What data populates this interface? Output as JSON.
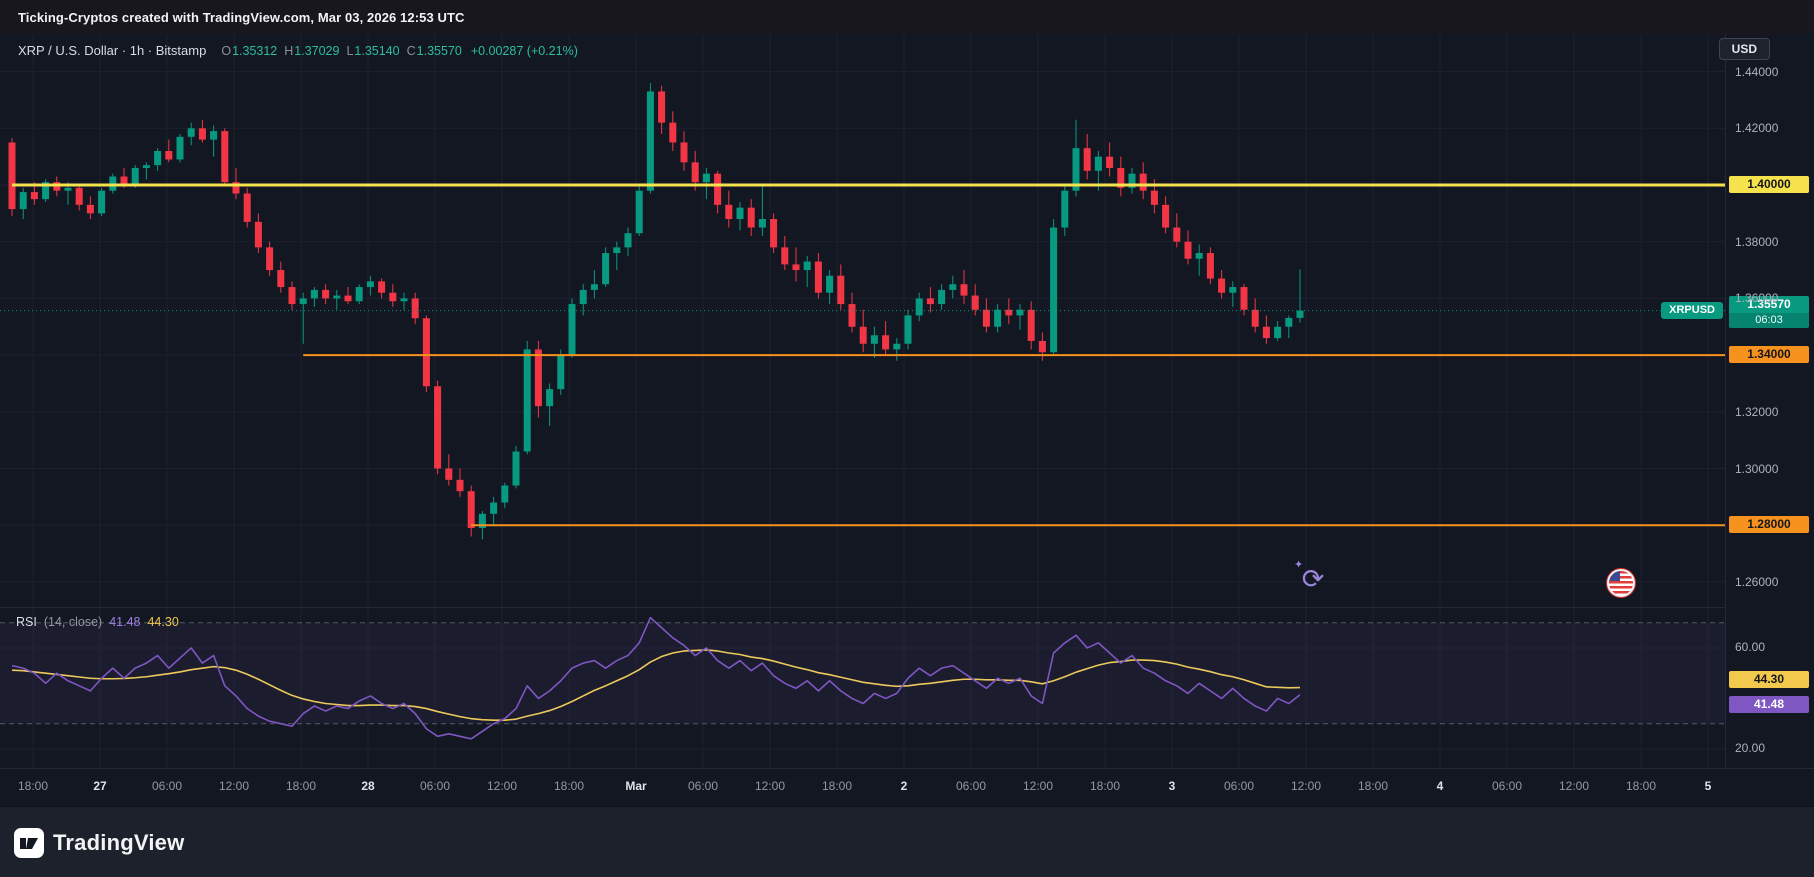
{
  "topbar": {
    "title": "Ticking-Cryptos created with TradingView.com, Mar 03, 2026 12:53 UTC"
  },
  "toolbar": {
    "currency_label": "USD"
  },
  "legend": {
    "symbol_title": "XRP / U.S. Dollar · 1h · Bitstamp",
    "o_label": "O",
    "o": "1.35312",
    "h_label": "H",
    "h": "1.37029",
    "l_label": "L",
    "l": "1.35140",
    "c_label": "C",
    "c": "1.35570",
    "change": "+0.00287 (+0.21%)"
  },
  "rsi_legend": {
    "title": "RSI",
    "params": "(14, close)",
    "value": "41.48",
    "ma_value": "44.30"
  },
  "price_label": {
    "symbol_badge": "XRPUSD",
    "price": "1.35570",
    "countdown": "06:03"
  },
  "footer": {
    "brand": "TradingView"
  },
  "colors": {
    "background": "#131722",
    "up": "#089981",
    "down": "#f23645",
    "yellow_line": "#f6e24c",
    "orange_line": "#f7921e",
    "rsi_line": "#7e57c2",
    "rsi_ma": "#edc95c",
    "grid": "#1d2130",
    "axis_text": "#aeb1bb"
  },
  "time_axis": {
    "labels": [
      {
        "t": "18:00",
        "day": false
      },
      {
        "t": "27",
        "day": true
      },
      {
        "t": "06:00",
        "day": false
      },
      {
        "t": "12:00",
        "day": false
      },
      {
        "t": "18:00",
        "day": false
      },
      {
        "t": "28",
        "day": true
      },
      {
        "t": "06:00",
        "day": false
      },
      {
        "t": "12:00",
        "day": false
      },
      {
        "t": "18:00",
        "day": false
      },
      {
        "t": "Mar",
        "day": true
      },
      {
        "t": "06:00",
        "day": false
      },
      {
        "t": "12:00",
        "day": false
      },
      {
        "t": "18:00",
        "day": false
      },
      {
        "t": "2",
        "day": true
      },
      {
        "t": "06:00",
        "day": false
      },
      {
        "t": "12:00",
        "day": false
      },
      {
        "t": "18:00",
        "day": false
      },
      {
        "t": "3",
        "day": true
      },
      {
        "t": "06:00",
        "day": false
      },
      {
        "t": "12:00",
        "day": false
      },
      {
        "t": "18:00",
        "day": false
      },
      {
        "t": "4",
        "day": true
      },
      {
        "t": "06:00",
        "day": false
      },
      {
        "t": "12:00",
        "day": false
      },
      {
        "t": "18:00",
        "day": false
      },
      {
        "t": "5",
        "day": true
      }
    ]
  },
  "price_scale": {
    "plain_ticks": [
      {
        "label": "1.44000",
        "value": 1.44
      },
      {
        "label": "1.42000",
        "value": 1.42
      },
      {
        "label": "1.38000",
        "value": 1.38
      },
      {
        "label": "1.36000",
        "value": 1.36
      },
      {
        "label": "1.32000",
        "value": 1.32
      },
      {
        "label": "1.30000",
        "value": 1.3
      },
      {
        "label": "1.26000",
        "value": 1.26
      }
    ]
  },
  "chart_data": {
    "type": "candlestick",
    "symbol": "XRPUSD",
    "exchange": "Bitstamp",
    "interval": "1h",
    "title": "XRP / U.S. Dollar",
    "time_range": "Feb 26 16:00 to Mar 03 12:00, hourly bars",
    "ylim": [
      1.25,
      1.455
    ],
    "y_ticks": [
      1.26,
      1.28,
      1.3,
      1.32,
      1.34,
      1.36,
      1.38,
      1.4,
      1.42,
      1.44
    ],
    "ohlc": [
      [
        1.415,
        1.4165,
        1.389,
        1.3915
      ],
      [
        1.3915,
        1.399,
        1.388,
        1.3975
      ],
      [
        1.3975,
        1.401,
        1.393,
        1.395
      ],
      [
        1.395,
        1.402,
        1.394,
        1.401
      ],
      [
        1.401,
        1.403,
        1.396,
        1.398
      ],
      [
        1.398,
        1.401,
        1.393,
        1.399
      ],
      [
        1.399,
        1.4,
        1.391,
        1.393
      ],
      [
        1.393,
        1.396,
        1.388,
        1.39
      ],
      [
        1.39,
        1.399,
        1.389,
        1.398
      ],
      [
        1.398,
        1.404,
        1.397,
        1.403
      ],
      [
        1.403,
        1.406,
        1.399,
        1.4
      ],
      [
        1.4,
        1.407,
        1.399,
        1.406
      ],
      [
        1.406,
        1.408,
        1.402,
        1.407
      ],
      [
        1.407,
        1.413,
        1.405,
        1.412
      ],
      [
        1.412,
        1.416,
        1.408,
        1.409
      ],
      [
        1.409,
        1.418,
        1.408,
        1.417
      ],
      [
        1.417,
        1.422,
        1.414,
        1.42
      ],
      [
        1.42,
        1.423,
        1.415,
        1.416
      ],
      [
        1.416,
        1.421,
        1.41,
        1.419
      ],
      [
        1.419,
        1.42,
        1.4,
        1.401
      ],
      [
        1.401,
        1.406,
        1.395,
        1.397
      ],
      [
        1.397,
        1.399,
        1.385,
        1.387
      ],
      [
        1.387,
        1.39,
        1.376,
        1.378
      ],
      [
        1.378,
        1.38,
        1.368,
        1.37
      ],
      [
        1.37,
        1.373,
        1.362,
        1.364
      ],
      [
        1.364,
        1.366,
        1.356,
        1.358
      ],
      [
        1.358,
        1.362,
        1.344,
        1.36
      ],
      [
        1.36,
        1.364,
        1.357,
        1.363
      ],
      [
        1.363,
        1.365,
        1.358,
        1.36
      ],
      [
        1.36,
        1.363,
        1.356,
        1.361
      ],
      [
        1.361,
        1.364,
        1.358,
        1.359
      ],
      [
        1.359,
        1.365,
        1.358,
        1.364
      ],
      [
        1.364,
        1.368,
        1.361,
        1.366
      ],
      [
        1.366,
        1.367,
        1.36,
        1.362
      ],
      [
        1.362,
        1.365,
        1.357,
        1.359
      ],
      [
        1.359,
        1.362,
        1.356,
        1.36
      ],
      [
        1.36,
        1.362,
        1.351,
        1.353
      ],
      [
        1.353,
        1.354,
        1.327,
        1.329
      ],
      [
        1.329,
        1.331,
        1.298,
        1.3
      ],
      [
        1.3,
        1.305,
        1.294,
        1.296
      ],
      [
        1.296,
        1.3,
        1.29,
        1.292
      ],
      [
        1.292,
        1.294,
        1.276,
        1.279
      ],
      [
        1.279,
        1.285,
        1.275,
        1.284
      ],
      [
        1.284,
        1.29,
        1.28,
        1.288
      ],
      [
        1.288,
        1.295,
        1.286,
        1.294
      ],
      [
        1.294,
        1.308,
        1.293,
        1.306
      ],
      [
        1.306,
        1.345,
        1.305,
        1.342
      ],
      [
        1.342,
        1.345,
        1.318,
        1.322
      ],
      [
        1.322,
        1.33,
        1.315,
        1.328
      ],
      [
        1.328,
        1.342,
        1.326,
        1.34
      ],
      [
        1.34,
        1.36,
        1.339,
        1.358
      ],
      [
        1.358,
        1.365,
        1.354,
        1.363
      ],
      [
        1.363,
        1.37,
        1.36,
        1.365
      ],
      [
        1.365,
        1.378,
        1.364,
        1.376
      ],
      [
        1.376,
        1.38,
        1.37,
        1.378
      ],
      [
        1.378,
        1.385,
        1.375,
        1.383
      ],
      [
        1.383,
        1.4,
        1.382,
        1.398
      ],
      [
        1.398,
        1.436,
        1.397,
        1.433
      ],
      [
        1.433,
        1.435,
        1.418,
        1.422
      ],
      [
        1.422,
        1.426,
        1.412,
        1.415
      ],
      [
        1.415,
        1.419,
        1.405,
        1.408
      ],
      [
        1.408,
        1.412,
        1.398,
        1.401
      ],
      [
        1.401,
        1.406,
        1.395,
        1.404
      ],
      [
        1.404,
        1.405,
        1.39,
        1.393
      ],
      [
        1.393,
        1.398,
        1.385,
        1.388
      ],
      [
        1.388,
        1.394,
        1.384,
        1.392
      ],
      [
        1.392,
        1.395,
        1.382,
        1.385
      ],
      [
        1.385,
        1.4,
        1.382,
        1.388
      ],
      [
        1.388,
        1.39,
        1.376,
        1.378
      ],
      [
        1.378,
        1.382,
        1.37,
        1.372
      ],
      [
        1.372,
        1.378,
        1.366,
        1.37
      ],
      [
        1.37,
        1.375,
        1.364,
        1.373
      ],
      [
        1.373,
        1.376,
        1.36,
        1.362
      ],
      [
        1.362,
        1.37,
        1.358,
        1.368
      ],
      [
        1.368,
        1.372,
        1.356,
        1.358
      ],
      [
        1.358,
        1.362,
        1.348,
        1.35
      ],
      [
        1.35,
        1.356,
        1.341,
        1.344
      ],
      [
        1.344,
        1.35,
        1.339,
        1.347
      ],
      [
        1.347,
        1.352,
        1.34,
        1.342
      ],
      [
        1.342,
        1.346,
        1.338,
        1.344
      ],
      [
        1.344,
        1.356,
        1.342,
        1.354
      ],
      [
        1.354,
        1.362,
        1.352,
        1.36
      ],
      [
        1.36,
        1.364,
        1.355,
        1.358
      ],
      [
        1.358,
        1.365,
        1.356,
        1.363
      ],
      [
        1.363,
        1.368,
        1.36,
        1.365
      ],
      [
        1.365,
        1.37,
        1.358,
        1.361
      ],
      [
        1.361,
        1.365,
        1.354,
        1.356
      ],
      [
        1.356,
        1.36,
        1.348,
        1.35
      ],
      [
        1.35,
        1.358,
        1.348,
        1.356
      ],
      [
        1.356,
        1.36,
        1.351,
        1.354
      ],
      [
        1.354,
        1.358,
        1.349,
        1.356
      ],
      [
        1.356,
        1.359,
        1.342,
        1.345
      ],
      [
        1.345,
        1.348,
        1.338,
        1.341
      ],
      [
        1.341,
        1.388,
        1.34,
        1.385
      ],
      [
        1.385,
        1.4,
        1.382,
        1.398
      ],
      [
        1.398,
        1.423,
        1.396,
        1.413
      ],
      [
        1.413,
        1.418,
        1.402,
        1.405
      ],
      [
        1.405,
        1.412,
        1.398,
        1.41
      ],
      [
        1.41,
        1.415,
        1.403,
        1.406
      ],
      [
        1.406,
        1.41,
        1.396,
        1.399
      ],
      [
        1.399,
        1.406,
        1.397,
        1.404
      ],
      [
        1.404,
        1.408,
        1.395,
        1.398
      ],
      [
        1.398,
        1.402,
        1.39,
        1.393
      ],
      [
        1.393,
        1.396,
        1.383,
        1.385
      ],
      [
        1.385,
        1.39,
        1.378,
        1.38
      ],
      [
        1.38,
        1.384,
        1.372,
        1.374
      ],
      [
        1.374,
        1.379,
        1.368,
        1.376
      ],
      [
        1.376,
        1.378,
        1.365,
        1.367
      ],
      [
        1.367,
        1.37,
        1.36,
        1.362
      ],
      [
        1.362,
        1.366,
        1.357,
        1.364
      ],
      [
        1.364,
        1.365,
        1.354,
        1.356
      ],
      [
        1.356,
        1.36,
        1.348,
        1.35
      ],
      [
        1.35,
        1.354,
        1.344,
        1.346
      ],
      [
        1.346,
        1.352,
        1.345,
        1.35
      ],
      [
        1.35,
        1.354,
        1.346,
        1.3531
      ],
      [
        1.35312,
        1.37029,
        1.3514,
        1.3557
      ]
    ],
    "levels": [
      {
        "price": 1.4,
        "label": "1.40000",
        "color": "#f6e24c",
        "start_index": 0,
        "width": 3
      },
      {
        "price": 1.34,
        "label": "1.34000",
        "color": "#f7921e",
        "start_index": 26,
        "width": 2
      },
      {
        "price": 1.28,
        "label": "1.28000",
        "color": "#f7921e",
        "start_index": 41,
        "width": 2
      }
    ],
    "last_price": {
      "value": 1.3557,
      "label": "1.35570",
      "countdown": "06:03"
    },
    "indicator": {
      "name": "RSI",
      "params": "(14, close)",
      "last": 41.48,
      "ma_last": 44.3,
      "bands": [
        70,
        30
      ],
      "axis_ticks": [
        {
          "label": "60.00",
          "value": 60
        },
        {
          "label": "20.00",
          "value": 20
        }
      ],
      "ylim": [
        15,
        75
      ],
      "values": [
        53,
        52,
        50,
        46,
        50,
        47,
        45,
        43,
        48,
        52,
        48,
        52,
        54,
        57,
        52,
        56,
        60,
        54,
        57,
        45,
        41,
        36,
        33,
        31,
        30,
        29,
        34,
        37,
        35,
        37,
        36,
        39,
        41,
        38,
        36,
        38,
        34,
        28,
        25,
        26,
        25,
        24,
        27,
        30,
        32,
        36,
        45,
        40,
        43,
        47,
        52,
        54,
        55,
        52,
        55,
        57,
        62,
        72,
        68,
        64,
        61,
        57,
        60,
        55,
        52,
        55,
        51,
        54,
        49,
        46,
        44,
        47,
        43,
        47,
        43,
        40,
        38,
        42,
        40,
        42,
        48,
        52,
        49,
        52,
        53,
        50,
        47,
        44,
        48,
        46,
        48,
        41,
        38,
        58,
        62,
        65,
        60,
        62,
        58,
        54,
        57,
        52,
        50,
        47,
        45,
        42,
        46,
        43,
        40,
        44,
        40,
        37,
        35,
        40,
        38,
        41.48
      ],
      "ma": [
        51.2,
        51,
        50.5,
        50,
        49.5,
        49,
        48.5,
        48,
        47.8,
        47.8,
        47.9,
        48.2,
        48.6,
        49.2,
        49.8,
        50.5,
        51.4,
        52,
        52.6,
        52.2,
        51.2,
        49.6,
        47.6,
        45.4,
        43.2,
        41.2,
        39.8,
        38.8,
        38,
        37.6,
        37.2,
        37.2,
        37.4,
        37.4,
        37.2,
        37.2,
        36.8,
        36,
        34.8,
        33.8,
        32.8,
        32,
        31.6,
        31.4,
        31.4,
        31.8,
        33,
        34,
        35.2,
        36.8,
        38.8,
        41,
        43.2,
        45,
        47,
        49,
        51.4,
        54.4,
        56.6,
        58,
        58.8,
        59,
        59.2,
        58.8,
        58,
        57.4,
        56.4,
        55.8,
        54.8,
        53.6,
        52.4,
        51.4,
        50.2,
        49.4,
        48.4,
        47.4,
        46.4,
        45.8,
        45.2,
        44.8,
        45,
        45.6,
        46,
        46.6,
        47.2,
        47.6,
        47.6,
        47.4,
        47.4,
        47.2,
        47.2,
        46.6,
        45.8,
        47,
        48.6,
        50.4,
        51.8,
        53.2,
        54.2,
        54.6,
        55.2,
        55.2,
        55,
        54.4,
        53.6,
        52.4,
        51.6,
        50.6,
        49.4,
        48.6,
        47.4,
        46,
        44.6,
        44.4,
        44.2,
        44.3
      ]
    }
  }
}
